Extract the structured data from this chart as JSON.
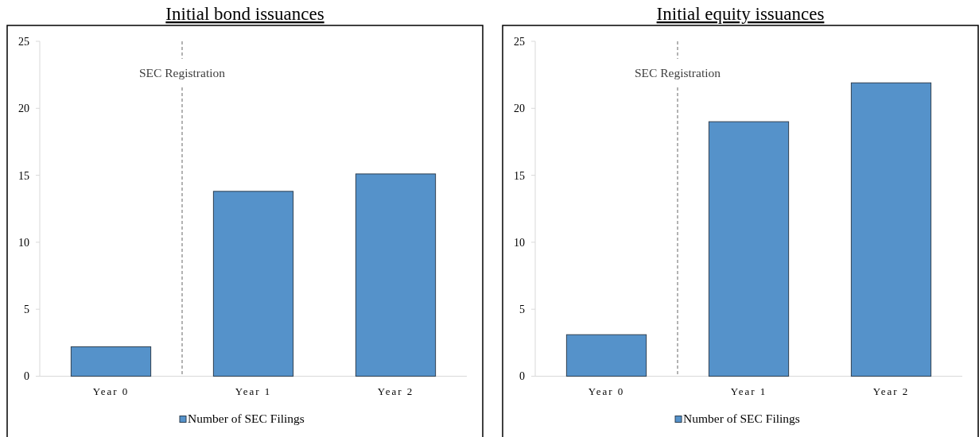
{
  "chart_data": [
    {
      "type": "bar",
      "title": "Initial bond issuances",
      "categories": [
        "Year 0",
        "Year 1",
        "Year 2"
      ],
      "series": [
        {
          "name": "Number of SEC Filings",
          "color": "#5592ca",
          "values": [
            2.2,
            13.8,
            15.1
          ]
        }
      ],
      "ylim": [
        0,
        25
      ],
      "yticks": [
        0,
        5,
        10,
        15,
        20,
        25
      ],
      "annotations": [
        "SEC Registration"
      ],
      "legend": "bottom"
    },
    {
      "type": "bar",
      "title": "Initial equity issuances",
      "categories": [
        "Year 0",
        "Year 1",
        "Year 2"
      ],
      "series": [
        {
          "name": "Number of SEC Filings",
          "color": "#5592ca",
          "values": [
            3.1,
            19,
            21.9
          ]
        }
      ],
      "ylim": [
        0,
        25
      ],
      "yticks": [
        0,
        5,
        10,
        15,
        20,
        25
      ],
      "annotations": [
        "SEC Registration"
      ],
      "legend": "bottom"
    }
  ]
}
